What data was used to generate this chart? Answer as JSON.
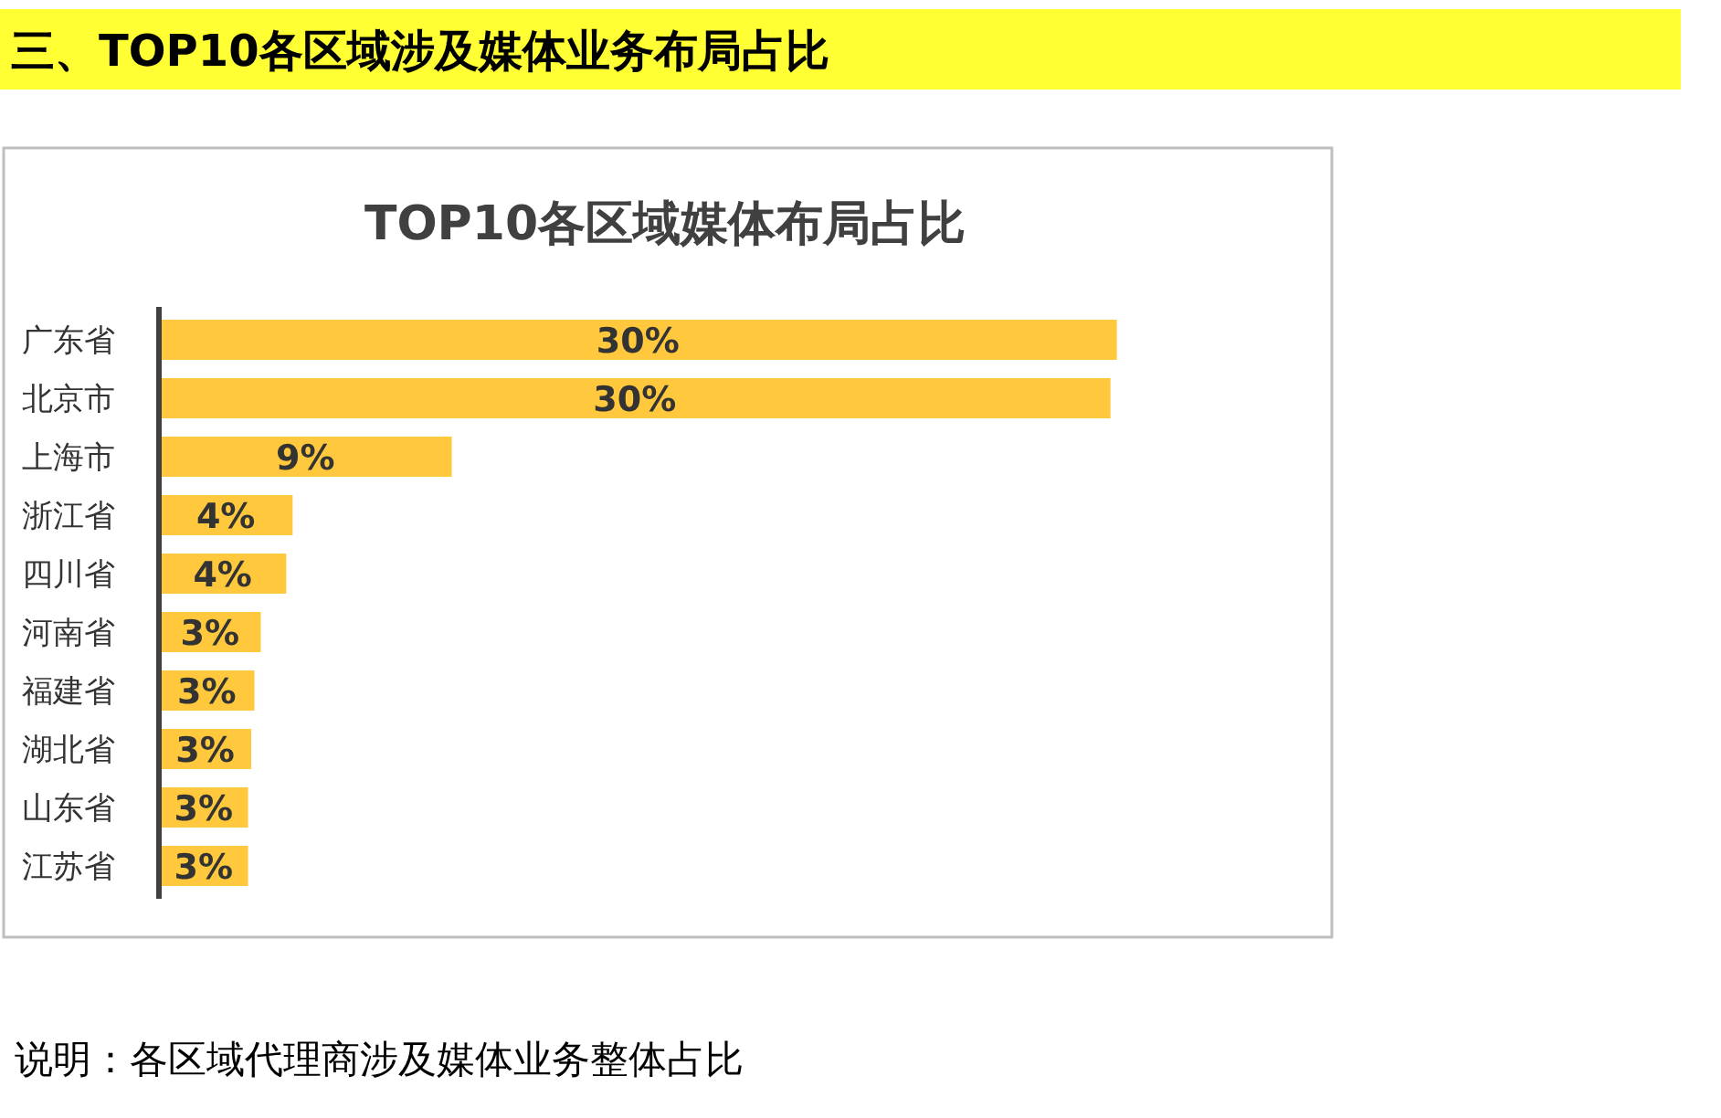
{
  "chart_data": {
    "type": "bar",
    "orientation": "horizontal",
    "title": "三、TOP10各区域涉及媒体业务布局占比",
    "subtitle": "TOP10各区域媒体布局占比",
    "categories": [
      "广东省",
      "北京市",
      "上海市",
      "浙江省",
      "四川省",
      "河南省",
      "福建省",
      "湖北省",
      "山东省",
      "江苏省"
    ],
    "values": [
      30.1,
      29.9,
      9.2,
      4.2,
      4.0,
      3.2,
      3.0,
      2.9,
      2.8,
      2.8
    ],
    "value_labels": [
      "30%",
      "30%",
      "9%",
      "4%",
      "4%",
      "3%",
      "3%",
      "3%",
      "3%",
      "3%"
    ],
    "color": "#ffc83d",
    "xlim": [
      0,
      36.8
    ],
    "tick_labels": "y",
    "annotations": [
      "说明：各区域代理商涉及媒体业务整体占比"
    ]
  }
}
